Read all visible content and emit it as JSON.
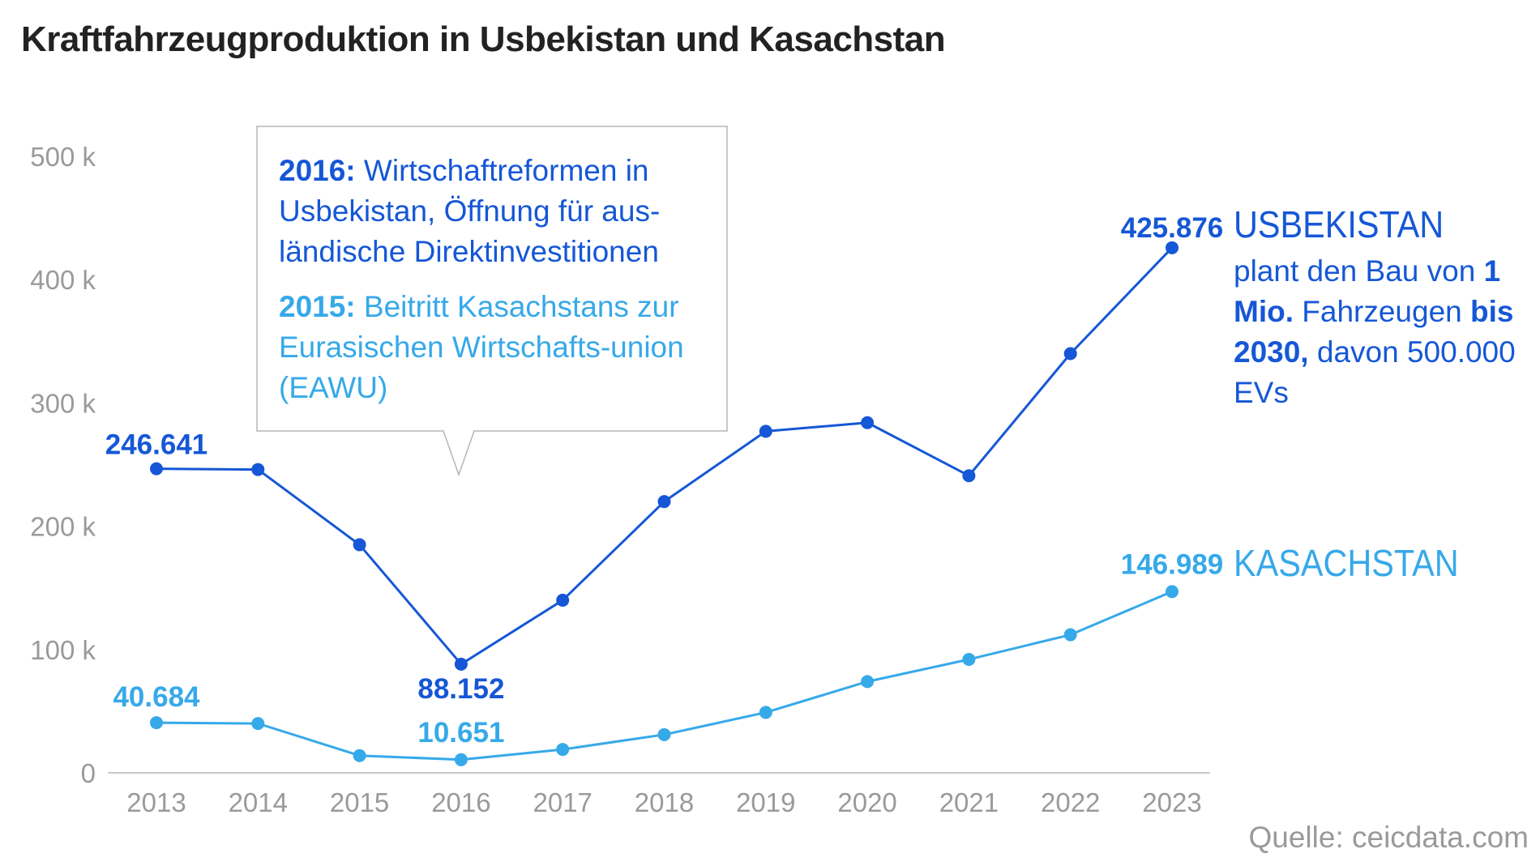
{
  "title": "Kraftfahrzeugproduktion in Usbekistan und Kasachstan",
  "colors": {
    "usbekistan": "#1557d6",
    "kasachstan": "#36a9e9",
    "axis": "#9a9a9a",
    "title": "#222222"
  },
  "chart_data": {
    "type": "line",
    "title": "Kraftfahrzeugproduktion in Usbekistan und Kasachstan",
    "xlabel": "",
    "ylabel": "",
    "x": [
      "2013",
      "2014",
      "2015",
      "2016",
      "2017",
      "2018",
      "2019",
      "2020",
      "2021",
      "2022",
      "2023"
    ],
    "ylim": [
      0,
      500000
    ],
    "yticks": [
      0,
      100000,
      200000,
      300000,
      400000,
      500000
    ],
    "ytick_labels": [
      "0",
      "100 k",
      "200 k",
      "300 k",
      "400 k",
      "500 k"
    ],
    "grid": false,
    "legend": "direct labels at right end of lines",
    "series": [
      {
        "name": "USBEKISTAN",
        "color": "#1557d6",
        "values": [
          246641,
          246000,
          185000,
          88152,
          140000,
          220000,
          277000,
          284000,
          241000,
          340000,
          425876
        ]
      },
      {
        "name": "KASACHSTAN",
        "color": "#36a9e9",
        "values": [
          40684,
          40000,
          14000,
          10651,
          19000,
          31000,
          49000,
          74000,
          92000,
          112000,
          146989
        ]
      }
    ],
    "data_labels": [
      {
        "series": 0,
        "index": 0,
        "text": "246.641"
      },
      {
        "series": 0,
        "index": 3,
        "text": "88.152"
      },
      {
        "series": 0,
        "index": 10,
        "text": "425.876"
      },
      {
        "series": 1,
        "index": 0,
        "text": "40.684"
      },
      {
        "series": 1,
        "index": 3,
        "text": "10.651"
      },
      {
        "series": 1,
        "index": 10,
        "text": "146.989"
      }
    ]
  },
  "callout": {
    "item1_year": "2016:",
    "item1_text": " Wirtschaftreformen in Usbekistan, Öffnung für aus-ländische Direktinvestitionen",
    "item2_year": "2015:",
    "item2_text": " Beitritt Kasachstans zur Eurasischen Wirtschafts-union (EAWU)"
  },
  "note": {
    "heading": "USBEKISTAN",
    "text1": "plant den Bau von ",
    "bold1": "1 Mio.",
    "text2": " Fahrzeugen ",
    "bold2": "bis 2030,",
    "text3": " davon 500.000 EVs"
  },
  "kasachstan_heading": "KASACHSTAN",
  "source": "Quelle: ceicdata.com"
}
